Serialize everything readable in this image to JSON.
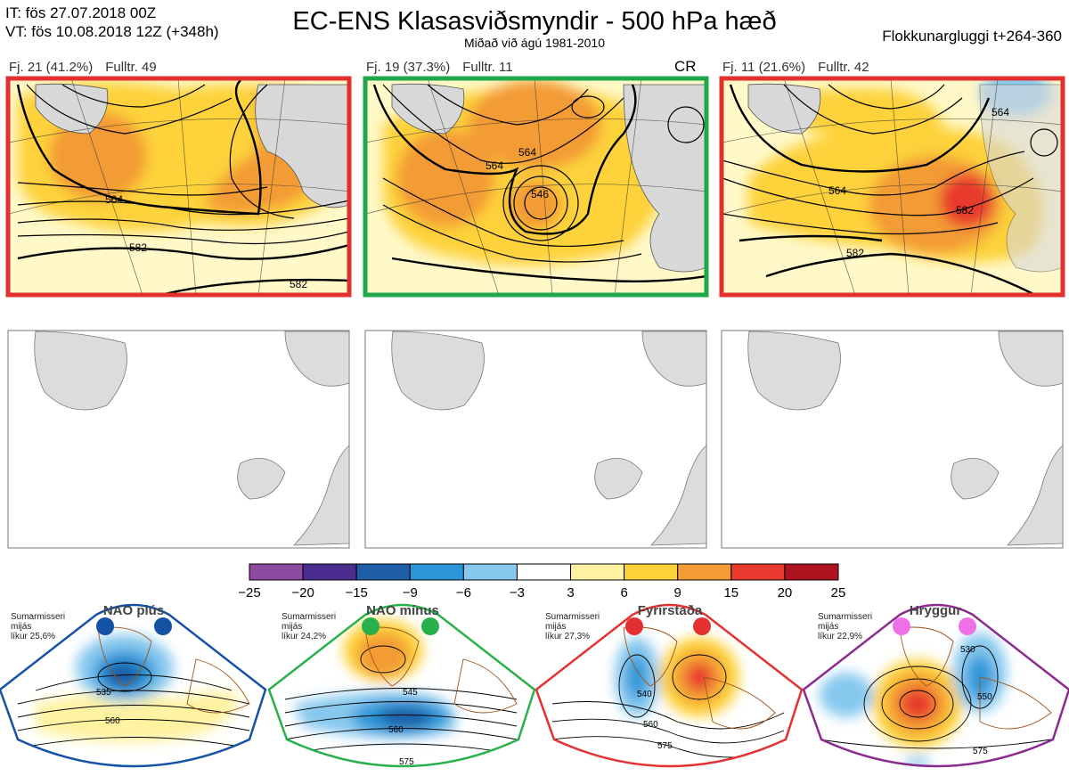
{
  "header": {
    "it_line": "IT: fös 27.07.2018 00Z",
    "vt_line": "VT: fös 10.08.2018 12Z  (+348h)",
    "title": "EC-ENS Klasasviðsmyndir - 500 hPa hæð",
    "subtitle": "Miðað við ágú 1981-2010",
    "window_label": "Flokkunargluggi t+264-360"
  },
  "clusters": [
    {
      "count": "Fj. 21 (41.2%)",
      "rep": "Fulltr. 49",
      "tag": "",
      "border_color": "#e23030",
      "contour_labels": [
        "564",
        "582",
        "582"
      ]
    },
    {
      "count": "Fj. 19 (37.3%)",
      "rep": "Fulltr. 11",
      "tag": "CR",
      "border_color": "#1ea84a",
      "contour_labels": [
        "564",
        "564",
        "546"
      ]
    },
    {
      "count": "Fj. 11 (21.6%)",
      "rep": "Fulltr. 42",
      "tag": "",
      "border_color": "#e23030",
      "contour_labels": [
        "564",
        "564",
        "582",
        "582"
      ]
    }
  ],
  "colorbar": {
    "ticks": [
      "−25",
      "−20",
      "−15",
      "−9",
      "−6",
      "−3",
      "3",
      "6",
      "9",
      "15",
      "20",
      "25"
    ],
    "colors": [
      "#8e4a9e",
      "#4a2d8f",
      "#1f5fa8",
      "#2a96d8",
      "#86c8ee",
      "#ffffff",
      "#fff2a0",
      "#fdd23a",
      "#f39b35",
      "#e83a2f",
      "#b01320"
    ]
  },
  "regimes": [
    {
      "name": "NAO plús",
      "season": "Sumarmisseri",
      "mean": "mijás",
      "prob": "líkur 25,6%",
      "dot_color": "#1452a6",
      "frame_color": "#1452a6",
      "contour_labels": [
        "535",
        "560"
      ]
    },
    {
      "name": "NAO mínus",
      "season": "Sumarmisseri",
      "mean": "mijás",
      "prob": "líkur 24,2%",
      "dot_color": "#28b04a",
      "frame_color": "#28b04a",
      "contour_labels": [
        "545",
        "560",
        "575"
      ]
    },
    {
      "name": "Fyrirstaða",
      "season": "Sumarmisseri",
      "mean": "mijás",
      "prob": "líkur 27,3%",
      "dot_color": "#e43030",
      "frame_color": "#e43030",
      "contour_labels": [
        "540",
        "560",
        "575"
      ]
    },
    {
      "name": "Hryggur",
      "season": "Sumarmisseri",
      "mean": "mijás",
      "prob": "líkur 22,9%",
      "dot_color": "#ee70e8",
      "frame_color": "#8b2a8e",
      "contour_labels": [
        "530",
        "550",
        "575"
      ]
    }
  ]
}
